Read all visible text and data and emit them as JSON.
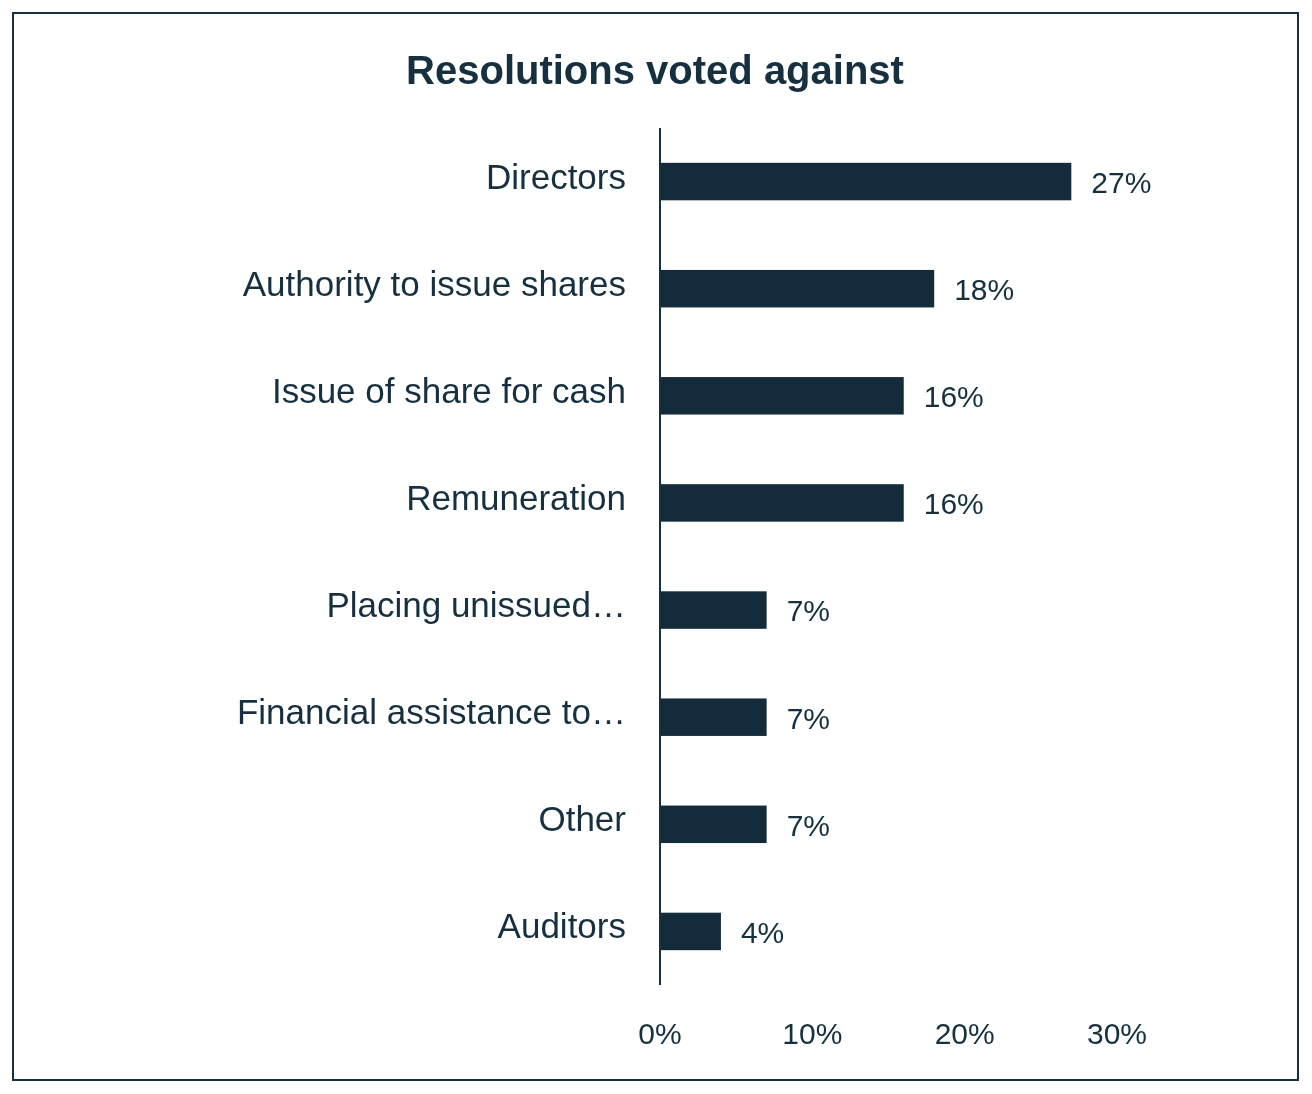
{
  "chart_data": {
    "type": "bar",
    "orientation": "horizontal",
    "title": "Resolutions voted against",
    "categories": [
      "Directors",
      "Authority to issue shares",
      "Issue of share for cash",
      "Remuneration",
      "Placing unissued…",
      "Financial assistance to…",
      "Other",
      "Auditors"
    ],
    "values": [
      27,
      18,
      16,
      16,
      7,
      7,
      7,
      4
    ],
    "color": "#132b3a",
    "value_labels": [
      "27%",
      "18%",
      "16%",
      "16%",
      "7%",
      "7%",
      "7%",
      "4%"
    ],
    "xlim": [
      0,
      30
    ],
    "xticks": [
      {
        "value": 0,
        "label": "0%"
      },
      {
        "value": 10,
        "label": "10%"
      },
      {
        "value": 20,
        "label": "20%"
      },
      {
        "value": 30,
        "label": "30%"
      }
    ]
  }
}
